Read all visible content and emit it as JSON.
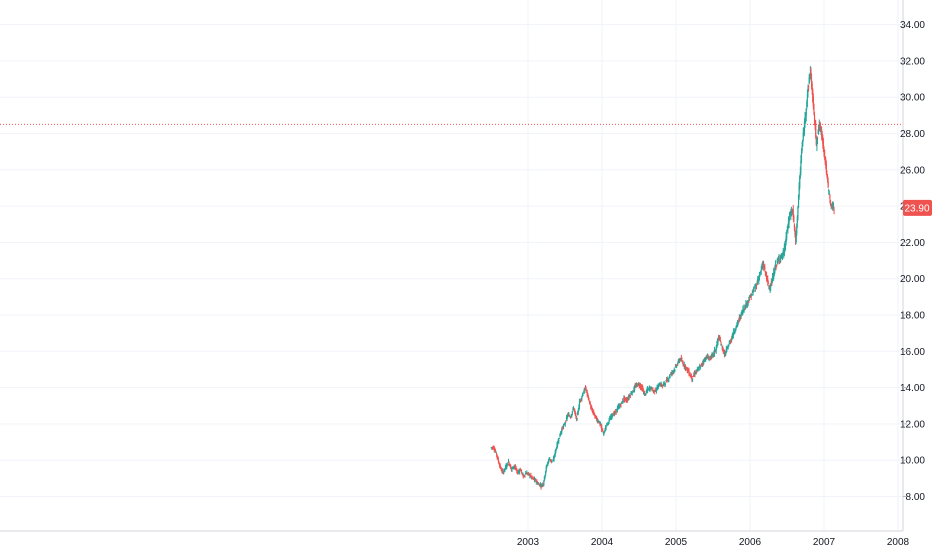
{
  "chart_data": {
    "type": "candlestick",
    "title": "",
    "xlabel": "",
    "ylabel": "",
    "ylim": [
      7,
      35
    ],
    "grid": true,
    "price_scale_position": "right",
    "y_ticks": [
      "8.00",
      "10.00",
      "12.00",
      "14.00",
      "16.00",
      "18.00",
      "20.00",
      "22.00",
      "24.00",
      "26.00",
      "28.00",
      "30.00",
      "32.00",
      "34.00"
    ],
    "x_ticks": [
      {
        "label": "2003",
        "t": 2003.0
      },
      {
        "label": "2004",
        "t": 2004.0
      },
      {
        "label": "2005",
        "t": 2005.0
      },
      {
        "label": "2006",
        "t": 2006.0
      },
      {
        "label": "2007",
        "t": 2007.0
      },
      {
        "label": "2008",
        "t": 2008.0
      }
    ],
    "last_price": {
      "label": "23.90",
      "value": 23.9
    },
    "reference_line": {
      "value": 28.5,
      "style": "dotted"
    },
    "colors": {
      "up": "#26a69a",
      "down": "#ef5350",
      "grid": "#f0f3fa",
      "axis_text": "#131722",
      "ref_line": "#ef5350"
    },
    "series": [
      {
        "name": "",
        "points": [
          [
            2002.54,
            10.7
          ],
          [
            2002.58,
            10.3
          ],
          [
            2002.62,
            9.7
          ],
          [
            2002.66,
            9.3
          ],
          [
            2002.7,
            9.6
          ],
          [
            2002.74,
            9.9
          ],
          [
            2002.78,
            9.5
          ],
          [
            2002.82,
            9.7
          ],
          [
            2002.86,
            9.3
          ],
          [
            2002.9,
            9.5
          ],
          [
            2002.94,
            9.1
          ],
          [
            2002.98,
            9.3
          ],
          [
            2003.02,
            9.2
          ],
          [
            2003.06,
            9.0
          ],
          [
            2003.1,
            8.9
          ],
          [
            2003.14,
            8.7
          ],
          [
            2003.18,
            8.6
          ],
          [
            2003.21,
            8.7
          ],
          [
            2003.25,
            9.6
          ],
          [
            2003.29,
            10.1
          ],
          [
            2003.33,
            9.9
          ],
          [
            2003.38,
            10.6
          ],
          [
            2003.42,
            11.2
          ],
          [
            2003.46,
            11.7
          ],
          [
            2003.5,
            12.0
          ],
          [
            2003.54,
            12.5
          ],
          [
            2003.58,
            12.4
          ],
          [
            2003.62,
            12.9
          ],
          [
            2003.66,
            12.2
          ],
          [
            2003.7,
            13.2
          ],
          [
            2003.74,
            13.6
          ],
          [
            2003.78,
            14.0
          ],
          [
            2003.82,
            13.4
          ],
          [
            2003.86,
            12.8
          ],
          [
            2003.9,
            12.5
          ],
          [
            2003.94,
            12.2
          ],
          [
            2003.97,
            12.1
          ],
          [
            2004.0,
            11.8
          ],
          [
            2004.03,
            11.4
          ],
          [
            2004.06,
            11.9
          ],
          [
            2004.1,
            12.2
          ],
          [
            2004.14,
            12.5
          ],
          [
            2004.18,
            12.6
          ],
          [
            2004.22,
            12.9
          ],
          [
            2004.26,
            13.1
          ],
          [
            2004.3,
            13.4
          ],
          [
            2004.34,
            13.3
          ],
          [
            2004.38,
            13.6
          ],
          [
            2004.42,
            13.8
          ],
          [
            2004.46,
            14.1
          ],
          [
            2004.5,
            14.2
          ],
          [
            2004.54,
            14.0
          ],
          [
            2004.58,
            13.6
          ],
          [
            2004.62,
            13.9
          ],
          [
            2004.66,
            14.0
          ],
          [
            2004.7,
            13.8
          ],
          [
            2004.74,
            13.9
          ],
          [
            2004.78,
            14.2
          ],
          [
            2004.82,
            14.1
          ],
          [
            2004.86,
            14.3
          ],
          [
            2004.9,
            14.5
          ],
          [
            2004.94,
            14.8
          ],
          [
            2004.98,
            15.0
          ],
          [
            2005.02,
            15.3
          ],
          [
            2005.06,
            15.6
          ],
          [
            2005.1,
            15.3
          ],
          [
            2005.14,
            15.1
          ],
          [
            2005.18,
            14.8
          ],
          [
            2005.22,
            14.5
          ],
          [
            2005.26,
            14.8
          ],
          [
            2005.3,
            15.0
          ],
          [
            2005.34,
            15.2
          ],
          [
            2005.38,
            15.5
          ],
          [
            2005.42,
            15.7
          ],
          [
            2005.46,
            15.6
          ],
          [
            2005.5,
            15.8
          ],
          [
            2005.54,
            16.1
          ],
          [
            2005.58,
            16.8
          ],
          [
            2005.62,
            16.3
          ],
          [
            2005.66,
            15.8
          ],
          [
            2005.7,
            16.2
          ],
          [
            2005.74,
            16.6
          ],
          [
            2005.78,
            17.0
          ],
          [
            2005.82,
            17.4
          ],
          [
            2005.86,
            17.8
          ],
          [
            2005.9,
            18.2
          ],
          [
            2005.94,
            18.5
          ],
          [
            2005.98,
            18.8
          ],
          [
            2006.02,
            19.1
          ],
          [
            2006.06,
            19.4
          ],
          [
            2006.1,
            19.8
          ],
          [
            2006.14,
            20.3
          ],
          [
            2006.18,
            20.8
          ],
          [
            2006.22,
            20.2
          ],
          [
            2006.26,
            19.5
          ],
          [
            2006.3,
            19.8
          ],
          [
            2006.34,
            20.6
          ],
          [
            2006.38,
            21.0
          ],
          [
            2006.42,
            21.2
          ],
          [
            2006.46,
            21.4
          ],
          [
            2006.5,
            22.5
          ],
          [
            2006.54,
            23.5
          ],
          [
            2006.58,
            23.8
          ],
          [
            2006.62,
            22.0
          ],
          [
            2006.66,
            24.5
          ],
          [
            2006.7,
            27.0
          ],
          [
            2006.74,
            28.5
          ],
          [
            2006.78,
            30.2
          ],
          [
            2006.82,
            31.5
          ],
          [
            2006.86,
            29.5
          ],
          [
            2006.9,
            27.5
          ],
          [
            2006.94,
            28.5
          ],
          [
            2006.98,
            27.8
          ],
          [
            2007.02,
            26.5
          ],
          [
            2007.06,
            25.0
          ],
          [
            2007.1,
            24.0
          ],
          [
            2007.14,
            23.9
          ]
        ]
      }
    ]
  }
}
